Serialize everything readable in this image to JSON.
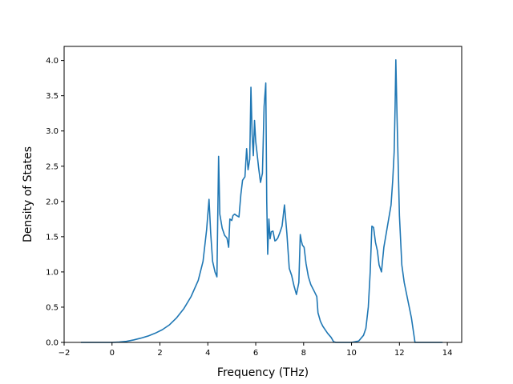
{
  "chart_data": {
    "type": "line",
    "title": "",
    "xlabel": "Frequency (THz)",
    "ylabel": "Density of States",
    "xlim": [
      -2,
      14.6
    ],
    "ylim": [
      0,
      4.2
    ],
    "xticks": [
      -2,
      0,
      2,
      4,
      6,
      8,
      10,
      12,
      14
    ],
    "yticks": [
      0.0,
      0.5,
      1.0,
      1.5,
      2.0,
      2.5,
      3.0,
      3.5,
      4.0
    ],
    "xtick_labels": [
      "−2",
      "0",
      "2",
      "4",
      "6",
      "8",
      "10",
      "12",
      "14"
    ],
    "ytick_labels": [
      "0.0",
      "0.5",
      "1.0",
      "1.5",
      "2.0",
      "2.5",
      "3.0",
      "3.5",
      "4.0"
    ],
    "grid": false,
    "line_color": "#1f77b4",
    "series": [
      {
        "x": [
          -1.3,
          0.0,
          0.3,
          0.6,
          0.9,
          1.2,
          1.5,
          1.8,
          2.1,
          2.4,
          2.7,
          3.0,
          3.3,
          3.6,
          3.8,
          3.95,
          4.05,
          4.12,
          4.2,
          4.3,
          4.38,
          4.45,
          4.5,
          4.6,
          4.7,
          4.8,
          4.87,
          4.92,
          5.0,
          5.05,
          5.12,
          5.2,
          5.3,
          5.38,
          5.45,
          5.55,
          5.62,
          5.68,
          5.75,
          5.8,
          5.85,
          5.9,
          5.95,
          6.0,
          6.05,
          6.12,
          6.2,
          6.28,
          6.35,
          6.42,
          6.46,
          6.5,
          6.55,
          6.6,
          6.65,
          6.72,
          6.8,
          6.85,
          6.92,
          7.0,
          7.1,
          7.2,
          7.3,
          7.4,
          7.5,
          7.6,
          7.7,
          7.8,
          7.86,
          7.9,
          7.95,
          8.02,
          8.1,
          8.2,
          8.3,
          8.45,
          8.55,
          8.6,
          8.7,
          8.8,
          8.9,
          9.0,
          9.15,
          9.25,
          9.35,
          9.6,
          10.0,
          10.3,
          10.5,
          10.6,
          10.7,
          10.78,
          10.85,
          10.92,
          11.0,
          11.08,
          11.15,
          11.25,
          11.35,
          11.45,
          11.55,
          11.65,
          11.72,
          11.78,
          11.82,
          11.85,
          11.9,
          11.95,
          12.0,
          12.1,
          12.2,
          12.35,
          12.5,
          12.65,
          13.8
        ],
        "y": [
          0.0,
          0.0,
          0.005,
          0.015,
          0.035,
          0.06,
          0.09,
          0.13,
          0.18,
          0.25,
          0.35,
          0.48,
          0.65,
          0.88,
          1.15,
          1.6,
          2.03,
          1.55,
          1.15,
          1.0,
          0.93,
          2.64,
          1.82,
          1.62,
          1.52,
          1.48,
          1.35,
          1.75,
          1.73,
          1.8,
          1.82,
          1.8,
          1.78,
          2.1,
          2.3,
          2.35,
          2.75,
          2.45,
          2.6,
          3.62,
          2.95,
          2.65,
          3.15,
          2.85,
          2.7,
          2.48,
          2.27,
          2.4,
          3.35,
          3.68,
          2.0,
          1.25,
          1.75,
          1.47,
          1.57,
          1.58,
          1.44,
          1.45,
          1.48,
          1.55,
          1.65,
          1.95,
          1.55,
          1.05,
          0.95,
          0.8,
          0.68,
          0.85,
          1.53,
          1.45,
          1.38,
          1.35,
          1.12,
          0.93,
          0.82,
          0.72,
          0.65,
          0.42,
          0.3,
          0.23,
          0.18,
          0.13,
          0.07,
          0.01,
          0.0,
          0.0,
          0.0,
          0.02,
          0.1,
          0.2,
          0.5,
          1.0,
          1.65,
          1.63,
          1.42,
          1.3,
          1.1,
          1.0,
          1.35,
          1.55,
          1.75,
          1.95,
          2.3,
          2.7,
          3.35,
          4.01,
          3.2,
          2.5,
          1.8,
          1.1,
          0.85,
          0.6,
          0.35,
          0.0,
          0.0
        ]
      }
    ]
  }
}
